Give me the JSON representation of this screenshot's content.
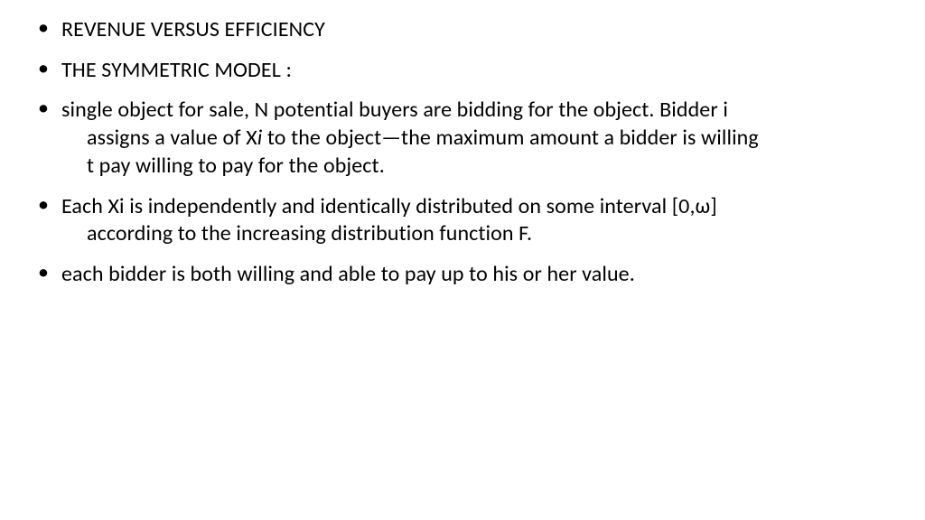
{
  "slide": {
    "background_color": "#ffffff",
    "text_color": "#000000",
    "font_family": "Calibri",
    "font_size_pt": 18,
    "line_height": 1.28,
    "bullets": [
      {
        "lines": [
          "REVENUE VERSUS EFFICIENCY"
        ]
      },
      {
        "lines": [
          "THE SYMMETRIC MODEL :"
        ]
      },
      {
        "lines": [
          "single object for sale, N potential buyers are bidding for the object. Bidder i",
          "assigns a value of X",
          " to the object—the maximum amount a bidder is willing",
          "t pay willing to pay for the object."
        ],
        "italic_after_prefix_index": 1,
        "italic_text": "i"
      },
      {
        "lines": [
          "Each Xi is independently and identically distributed on some interval [0,ω]",
          "according to the increasing distribution function F."
        ]
      },
      {
        "lines": [
          "each bidder is both willing and able to pay up to his or her value."
        ]
      }
    ]
  }
}
